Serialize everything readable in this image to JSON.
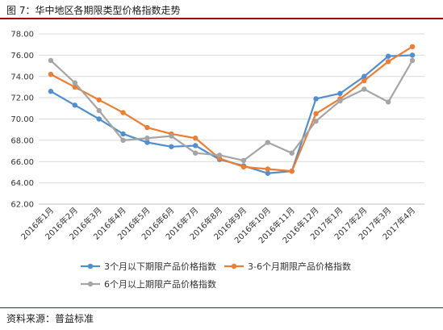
{
  "title": "图 7：华中地区各期限类型价格指数走势",
  "source": "资料来源：普益标准",
  "chart_data": {
    "type": "line",
    "categories": [
      "2016年1月",
      "2016年2月",
      "2016年3月",
      "2016年4月",
      "2016年5月",
      "2016年6月",
      "2016年7月",
      "2016年8月",
      "2016年9月",
      "2016年10月",
      "2016年11月",
      "2016年12月",
      "2017年1月",
      "2017年2月",
      "2017年3月",
      "2017年4月"
    ],
    "yticks": [
      "62.00",
      "64.00",
      "66.00",
      "68.00",
      "70.00",
      "72.00",
      "74.00",
      "76.00",
      "78.00"
    ],
    "ylim": [
      62,
      78
    ],
    "grid": true,
    "legend_position": "bottom",
    "series": [
      {
        "name": "3个月以下期限产品价格指数",
        "color": "#4f8fcf",
        "values": [
          72.6,
          71.3,
          70.0,
          68.6,
          67.8,
          67.4,
          67.5,
          66.2,
          65.6,
          64.9,
          65.1,
          71.9,
          72.4,
          74.0,
          75.9,
          76.0
        ]
      },
      {
        "name": "3-6个月期限产品价格指数",
        "color": "#ee7d31",
        "values": [
          74.2,
          73.0,
          71.8,
          70.6,
          69.2,
          68.6,
          68.2,
          66.3,
          65.5,
          65.3,
          65.1,
          70.5,
          71.9,
          73.6,
          75.4,
          76.8
        ]
      },
      {
        "name": "6个月以上期限产品价格指数",
        "color": "#a5a5a5",
        "values": [
          75.5,
          73.4,
          70.8,
          68.0,
          68.2,
          68.4,
          66.8,
          66.6,
          66.1,
          67.8,
          66.8,
          69.8,
          71.7,
          72.8,
          71.6,
          75.5
        ]
      }
    ]
  }
}
